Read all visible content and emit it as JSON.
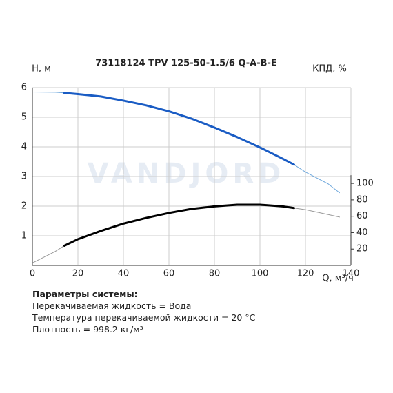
{
  "chart_data": {
    "type": "line",
    "title": "73118124 TPV 125-50-1.5/6 Q-A-B-E",
    "y_label": "H, м",
    "y2_label": "КПД, %",
    "x_label": "Q, м³/ч",
    "watermark": "VANDJORD",
    "xlim": [
      0,
      140
    ],
    "xticks": [
      0,
      20,
      40,
      60,
      80,
      100,
      120,
      140
    ],
    "ylim": [
      0,
      6
    ],
    "yticks": [
      1,
      2,
      3,
      4,
      5,
      6
    ],
    "y2lim": [
      0,
      217
    ],
    "y2ticks": [
      20,
      40,
      60,
      80,
      100
    ],
    "grid": true,
    "series": [
      {
        "color": "#6fa8dc",
        "line_width": 1,
        "x": [
          0,
          10,
          14,
          20,
          30,
          40,
          50,
          60,
          70,
          80,
          90,
          100,
          110,
          115,
          120,
          130,
          135
        ],
        "values": [
          5.85,
          5.84,
          5.82,
          5.78,
          5.7,
          5.56,
          5.4,
          5.2,
          4.95,
          4.65,
          4.33,
          3.98,
          3.6,
          3.4,
          3.15,
          2.75,
          2.45
        ]
      },
      {
        "color": "#1a5cc4",
        "line_width": 3,
        "x": [
          14,
          20,
          30,
          40,
          50,
          60,
          70,
          80,
          90,
          100,
          110,
          115
        ],
        "values": [
          5.82,
          5.78,
          5.7,
          5.56,
          5.4,
          5.2,
          4.95,
          4.65,
          4.33,
          3.98,
          3.6,
          3.4
        ]
      },
      {
        "color": "#999999",
        "line_width": 1,
        "axis": "y2",
        "x": [
          0,
          10,
          14,
          20,
          30,
          40,
          50,
          60,
          70,
          80,
          90,
          100,
          110,
          115,
          120,
          130,
          135
        ],
        "values": [
          3,
          17,
          24,
          32,
          42,
          51,
          58,
          64,
          69,
          72,
          74,
          74,
          72,
          70,
          68,
          62,
          59
        ]
      },
      {
        "color": "#000000",
        "line_width": 3,
        "axis": "y2",
        "x": [
          14,
          20,
          30,
          40,
          50,
          60,
          70,
          80,
          90,
          100,
          110,
          115
        ],
        "values": [
          24,
          32,
          42,
          51,
          58,
          64,
          69,
          72,
          74,
          74,
          72,
          70
        ]
      }
    ]
  },
  "parameters": {
    "title": "Параметры системы:",
    "lines": [
      "Перекачиваемая жидкость = Вода",
      "Температура перекачиваемой жидкости = 20 °C",
      "Плотность = 998.2 кг/м³"
    ]
  }
}
